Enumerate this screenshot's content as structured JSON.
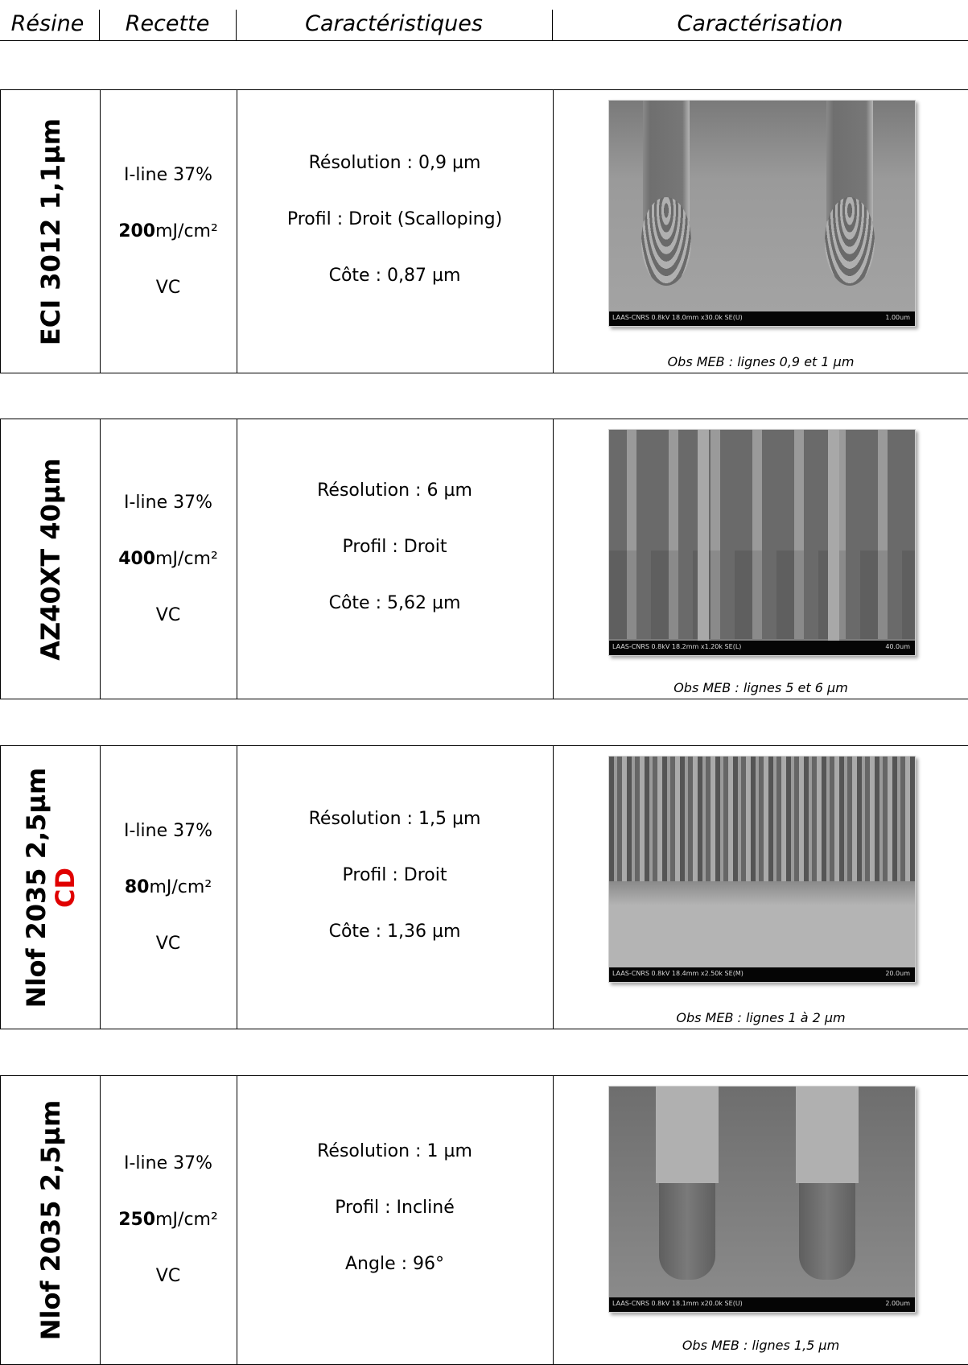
{
  "header": {
    "col1": "Résine",
    "col2": "Recette",
    "col3": "Caractéristiques",
    "col4": "Caractérisation"
  },
  "rows": [
    {
      "resin": "ECI 3012 1,1µm",
      "resin_extra": "",
      "line1": "I-line 37%",
      "dose_value": "200",
      "dose_unit": "mJ/cm²",
      "line3": "VC",
      "char1": "Résolution : 0,9 µm",
      "char2": "Profil : Droit (Scalloping)",
      "char3": "Côte : 0,87 µm",
      "sem_left": "LAAS-CNRS 0.8kV 18.0mm x30.0k SE(U)",
      "sem_right": "1.00um",
      "caption": "Obs MEB : lignes 0,9 et 1 µm"
    },
    {
      "resin": "AZ40XT 40µm",
      "resin_extra": "",
      "line1": "I-line 37%",
      "dose_value": "400",
      "dose_unit": "mJ/cm²",
      "line3": "VC",
      "char1": "Résolution : 6 µm",
      "char2": "Profil : Droit",
      "char3": "Côte : 5,62 µm",
      "sem_left": "LAAS-CNRS 0.8kV 18.2mm x1.20k SE(L)",
      "sem_right": "40.0um",
      "caption": "Obs MEB : lignes 5 et 6 µm"
    },
    {
      "resin": "Nlof 2035 2,5µm",
      "resin_extra": "CD",
      "line1": "I-line 37%",
      "dose_value": "80",
      "dose_unit": "mJ/cm²",
      "line3": "VC",
      "char1": "Résolution : 1,5 µm",
      "char2": "Profil : Droit",
      "char3": "Côte : 1,36 µm",
      "sem_left": "LAAS-CNRS 0.8kV 18.4mm x2.50k SE(M)",
      "sem_right": "20.0um",
      "caption": "Obs MEB : lignes 1 à 2 µm"
    },
    {
      "resin": "Nlof 2035 2,5µm",
      "resin_extra": "",
      "line1": "I-line 37%",
      "dose_value": "250",
      "dose_unit": "mJ/cm²",
      "line3": "VC",
      "char1": "Résolution : 1 µm",
      "char2": "Profil : Incliné",
      "char3": "Angle : 96°",
      "sem_left": "LAAS-CNRS 0.8kV 18.1mm x20.0k SE(U)",
      "sem_right": "2.00um",
      "caption": "Obs MEB : lignes 1,5 µm"
    }
  ]
}
